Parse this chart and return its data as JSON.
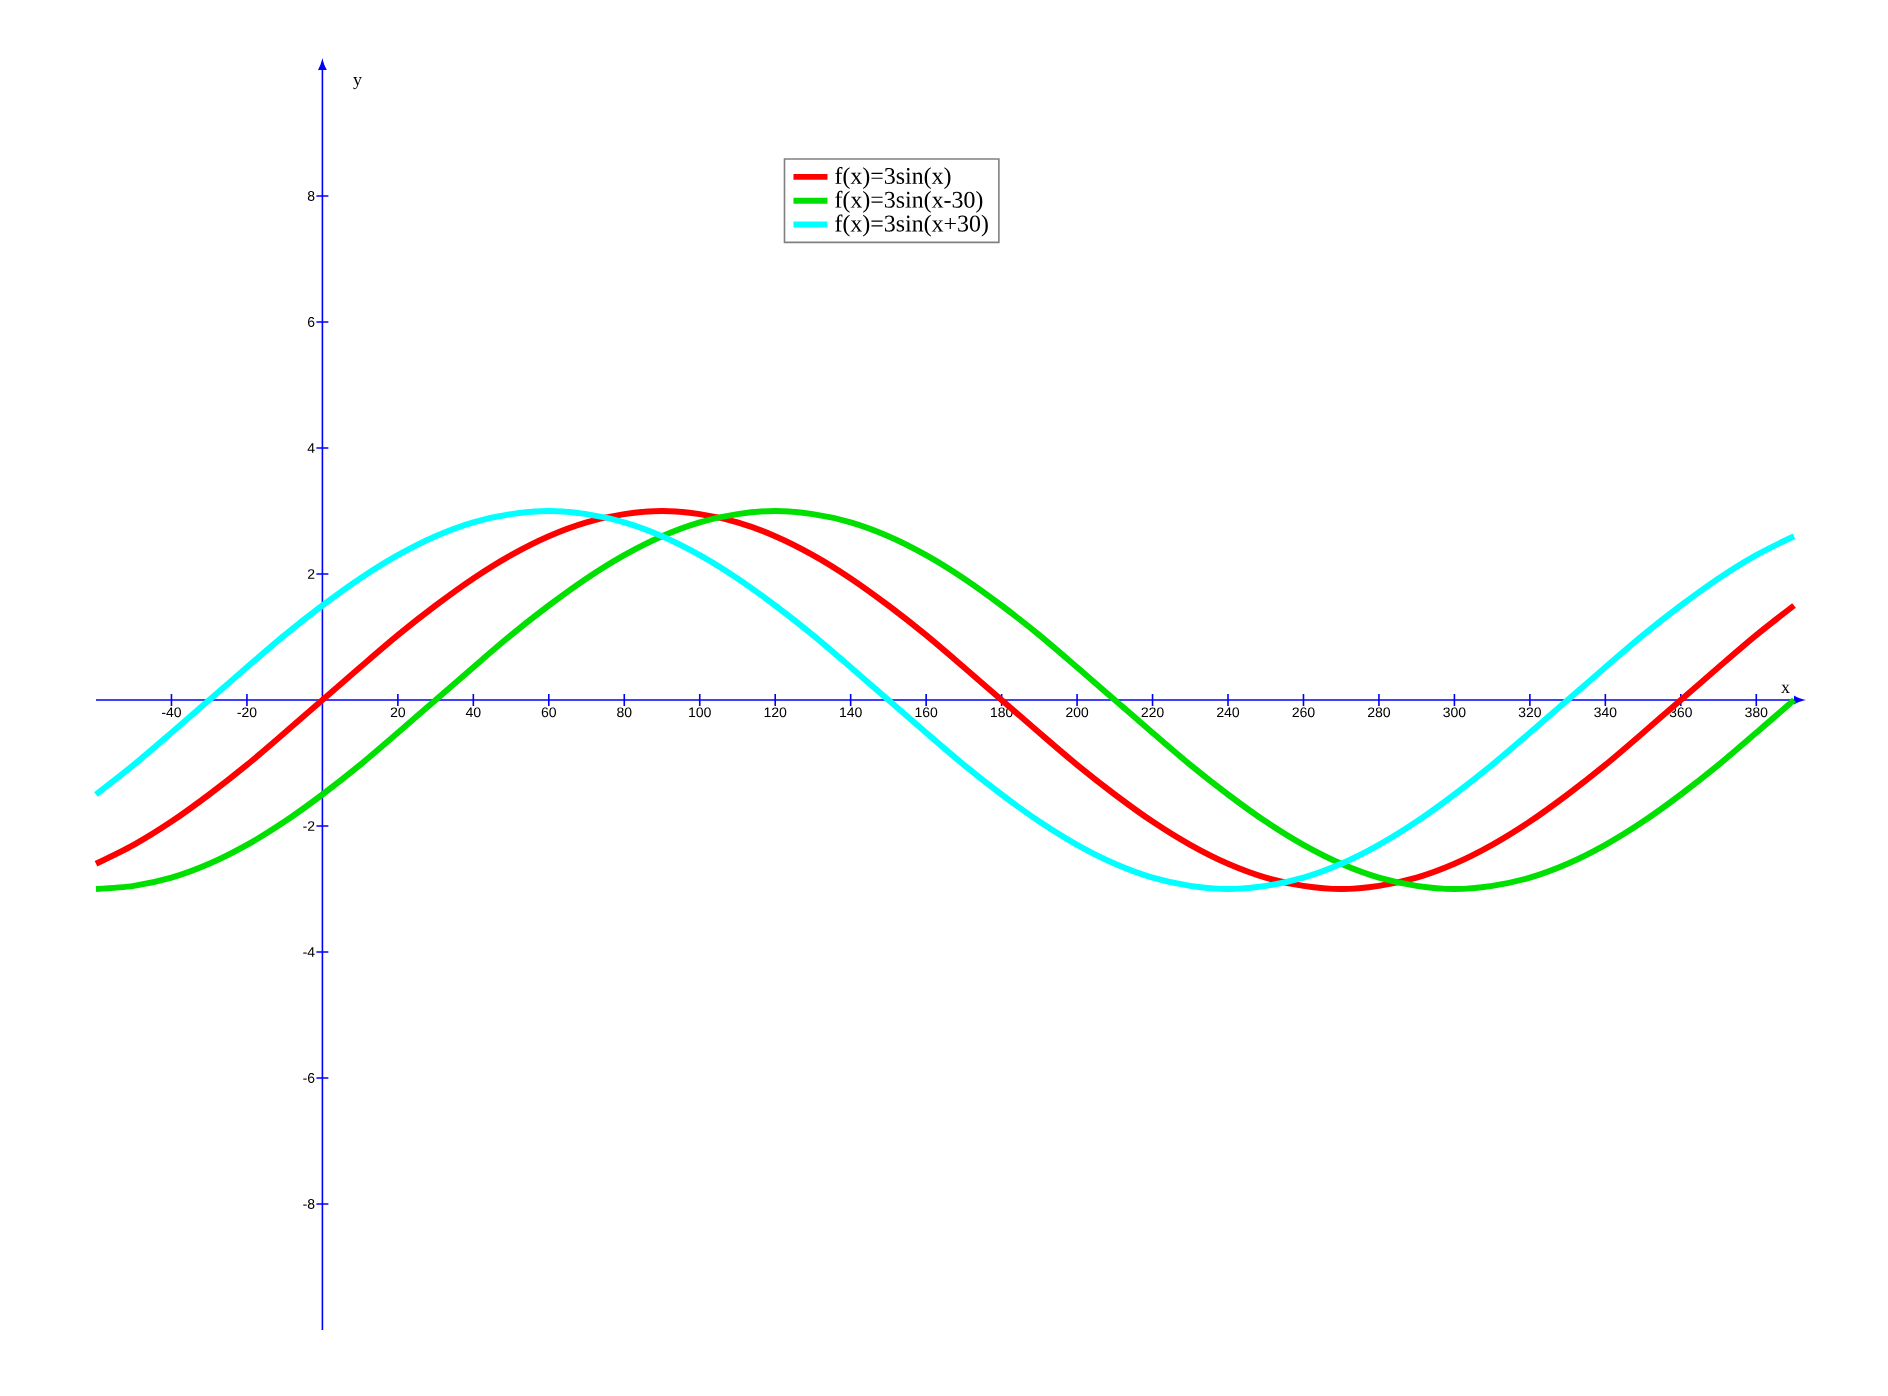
{
  "chart_data": {
    "type": "line",
    "xlabel": "x",
    "ylabel": "y",
    "x": [
      -60,
      -50,
      -40,
      -30,
      -20,
      -10,
      0,
      10,
      20,
      30,
      40,
      50,
      60,
      70,
      80,
      90,
      100,
      110,
      120,
      130,
      140,
      150,
      160,
      170,
      180,
      190,
      200,
      210,
      220,
      230,
      240,
      250,
      260,
      270,
      280,
      290,
      300,
      310,
      320,
      330,
      340,
      350,
      360,
      370,
      380,
      390
    ],
    "series": [
      {
        "name": "f(x)=3sin(x)",
        "color": "#ff0000",
        "values": [
          -2.6,
          -2.3,
          -1.93,
          -1.5,
          -1.03,
          -0.52,
          0,
          0.52,
          1.03,
          1.5,
          1.93,
          2.3,
          2.6,
          2.82,
          2.95,
          3,
          2.95,
          2.82,
          2.6,
          2.3,
          1.93,
          1.5,
          1.03,
          0.52,
          0,
          -0.52,
          -1.03,
          -1.5,
          -1.93,
          -2.3,
          -2.6,
          -2.82,
          -2.95,
          -3,
          -2.95,
          -2.82,
          -2.6,
          -2.3,
          -1.93,
          -1.5,
          -1.03,
          -0.52,
          0,
          0.52,
          1.03,
          1.5
        ]
      },
      {
        "name": "f(x)=3sin(x-30)",
        "color": "#00e000",
        "values": [
          -3,
          -2.95,
          -2.82,
          -2.6,
          -2.3,
          -1.93,
          -1.5,
          -1.03,
          -0.52,
          0,
          0.52,
          1.03,
          1.5,
          1.93,
          2.3,
          2.6,
          2.82,
          2.95,
          3,
          2.95,
          2.82,
          2.6,
          2.3,
          1.93,
          1.5,
          1.03,
          0.52,
          0,
          -0.52,
          -1.03,
          -1.5,
          -1.93,
          -2.3,
          -2.6,
          -2.82,
          -2.95,
          -3,
          -2.95,
          -2.82,
          -2.6,
          -2.3,
          -1.93,
          -1.5,
          -1.03,
          -0.52,
          0
        ]
      },
      {
        "name": "f(x)=3sin(x+30)",
        "color": "#00ffff",
        "values": [
          -1.5,
          -1.03,
          -0.52,
          0,
          0.52,
          1.03,
          1.5,
          1.93,
          2.3,
          2.6,
          2.82,
          2.95,
          3,
          2.95,
          2.82,
          2.6,
          2.3,
          1.93,
          1.5,
          1.03,
          0.52,
          0,
          -0.52,
          -1.03,
          -1.5,
          -1.93,
          -2.3,
          -2.6,
          -2.82,
          -2.95,
          -3,
          -2.95,
          -2.82,
          -2.6,
          -2.3,
          -1.93,
          -1.5,
          -1.03,
          -0.52,
          0,
          0.52,
          1.03,
          1.5,
          1.93,
          2.3,
          2.6
        ]
      }
    ],
    "xlim": [
      -60,
      390
    ],
    "ylim": [
      -10,
      10
    ],
    "xticks": [
      -40,
      -20,
      20,
      40,
      60,
      80,
      100,
      120,
      140,
      160,
      180,
      200,
      220,
      240,
      260,
      280,
      300,
      320,
      340,
      360,
      380
    ],
    "yticks": [
      -8,
      -6,
      -4,
      -2,
      2,
      4,
      6,
      8
    ],
    "legend": "top",
    "grid": false,
    "marker": "none",
    "line_style": "solid"
  }
}
